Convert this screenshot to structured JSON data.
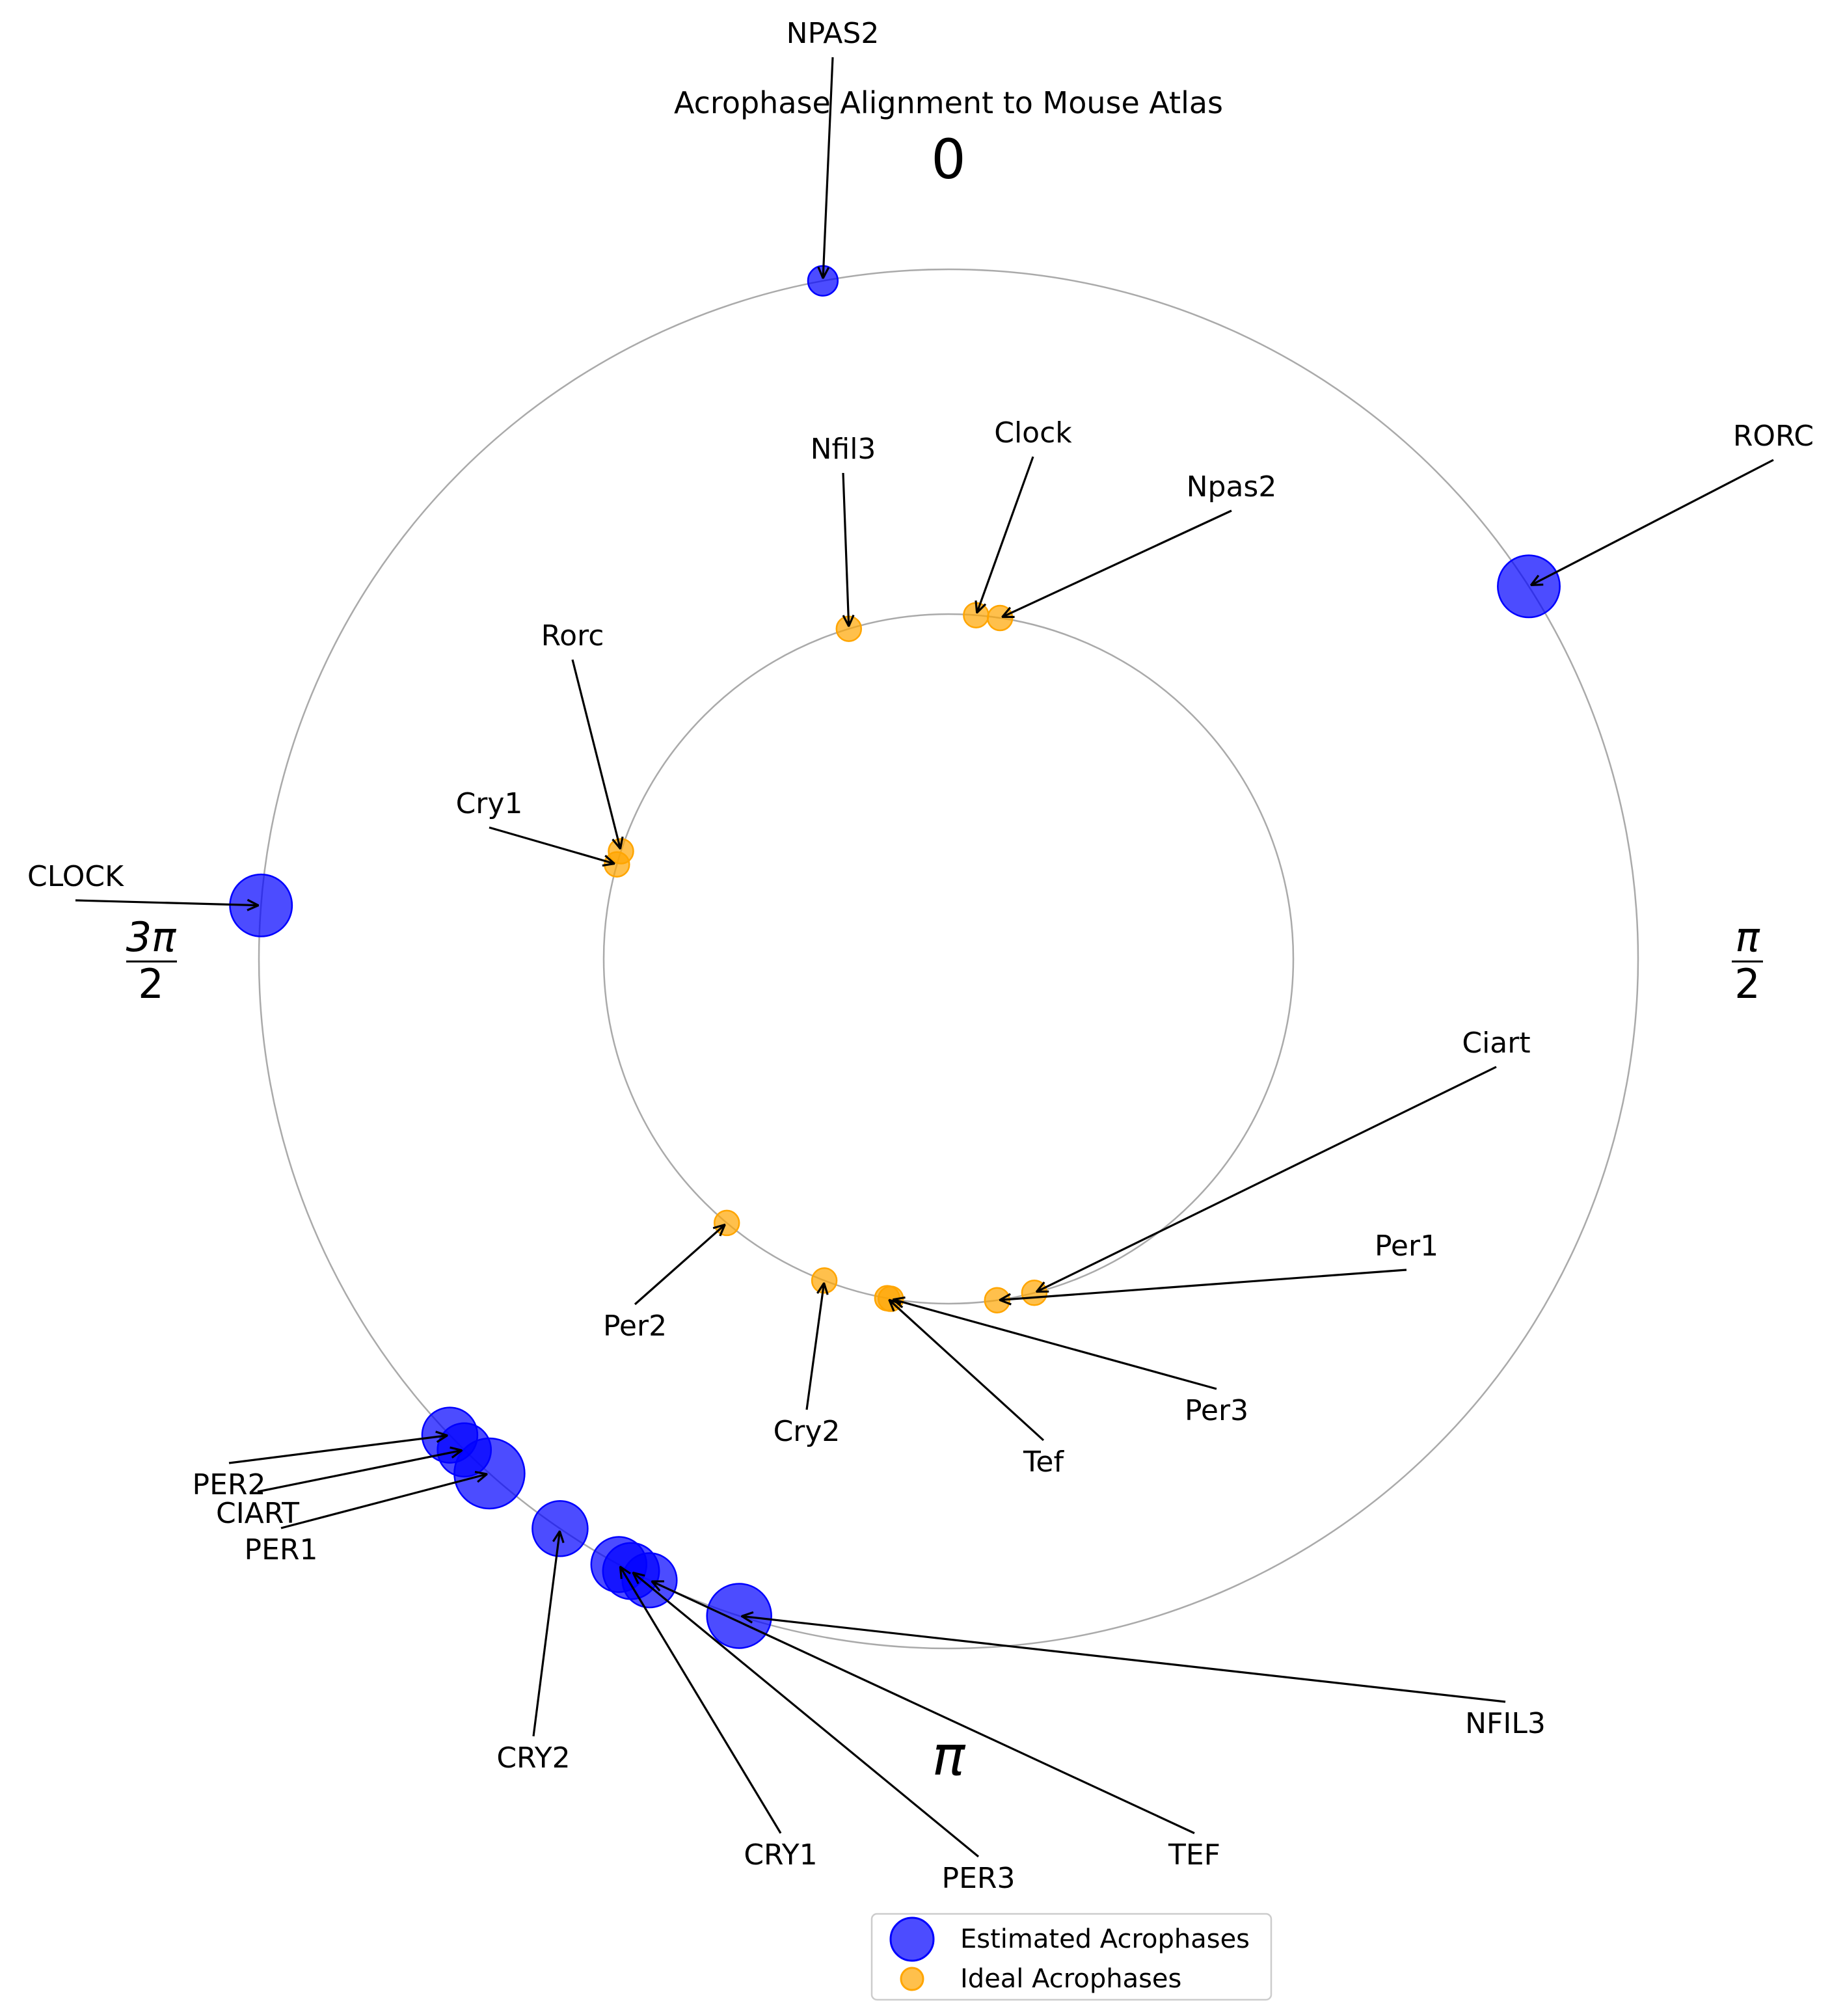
{
  "chart_data": {
    "type": "scatter",
    "projection": "polar",
    "title": "Acrophase Alignment to Mouse Atlas",
    "theta_direction": "clockwise",
    "theta_zero_location": "top",
    "theta_range": [
      0,
      6.283
    ],
    "phase_ticks": [
      {
        "label": "0",
        "theta": 0
      },
      {
        "label": "π/2",
        "numerator": "π",
        "denominator": "2",
        "theta": 1.5708
      },
      {
        "label": "π",
        "theta": 3.1416
      },
      {
        "label": "3π/2",
        "numerator": "3π",
        "denominator": "2",
        "theta": 4.7124
      }
    ],
    "radius_ticks": [
      1,
      2
    ],
    "grid": false,
    "legend_location": "bottom-center",
    "series": [
      {
        "name": "Estimated Acrophases",
        "color": "#0000ff",
        "opacity": 0.7,
        "radius": 2,
        "marker_size_encodes": "relative amplitude",
        "points": [
          {
            "label": "NPAS2",
            "theta": 6.1,
            "size": 0.18
          },
          {
            "label": "RORC",
            "theta": 1.0,
            "size": 0.78
          },
          {
            "label": "CLOCK",
            "theta": 4.79,
            "size": 0.78
          },
          {
            "label": "PER2",
            "theta": 3.95,
            "size": 0.62
          },
          {
            "label": "CIART",
            "theta": 3.92,
            "size": 0.58
          },
          {
            "label": "PER1",
            "theta": 3.87,
            "size": 1.0
          },
          {
            "label": "CRY2",
            "theta": 3.74,
            "size": 0.62
          },
          {
            "label": "CRY1",
            "theta": 3.64,
            "size": 0.62
          },
          {
            "label": "PER3",
            "theta": 3.62,
            "size": 0.64
          },
          {
            "label": "TEF",
            "theta": 3.59,
            "size": 0.6
          },
          {
            "label": "NFIL3",
            "theta": 3.45,
            "size": 0.84
          }
        ]
      },
      {
        "name": "Ideal Acrophases",
        "color": "#ffa500",
        "opacity": 0.7,
        "radius": 1,
        "points": [
          {
            "label": "Nfil3",
            "theta": 5.99
          },
          {
            "label": "Clock",
            "theta": 0.08
          },
          {
            "label": "Npas2",
            "theta": 0.15
          },
          {
            "label": "Rorc",
            "theta": 5.03
          },
          {
            "label": "Cry1",
            "theta": 4.99
          },
          {
            "label": "Per2",
            "theta": 3.84
          },
          {
            "label": "Cry2",
            "theta": 3.51
          },
          {
            "label": "Tef",
            "theta": 3.32
          },
          {
            "label": "Per3",
            "theta": 3.31
          },
          {
            "label": "Per1",
            "theta": 3.0
          },
          {
            "label": "Ciart",
            "theta": 2.89
          }
        ]
      }
    ],
    "annotations": [
      {
        "text": "NPAS2",
        "target": "NPAS2"
      },
      {
        "text": "RORC",
        "target": "RORC"
      },
      {
        "text": "CLOCK",
        "target": "CLOCK"
      },
      {
        "text": "PER2",
        "target": "PER2"
      },
      {
        "text": "CIART",
        "target": "CIART"
      },
      {
        "text": "PER1",
        "target": "PER1"
      },
      {
        "text": "CRY2",
        "target": "CRY2"
      },
      {
        "text": "CRY1",
        "target": "CRY1"
      },
      {
        "text": "PER3",
        "target": "PER3"
      },
      {
        "text": "TEF",
        "target": "TEF"
      },
      {
        "text": "NFIL3",
        "target": "NFIL3"
      },
      {
        "text": "Nfil3",
        "target": "Nfil3"
      },
      {
        "text": "Clock",
        "target": "Clock"
      },
      {
        "text": "Npas2",
        "target": "Npas2"
      },
      {
        "text": "Rorc",
        "target": "Rorc"
      },
      {
        "text": "Cry1",
        "target": "Cry1"
      },
      {
        "text": "Per2",
        "target": "Per2"
      },
      {
        "text": "Cry2",
        "target": "Cry2"
      },
      {
        "text": "Tef",
        "target": "Tef"
      },
      {
        "text": "Per3",
        "target": "Per3"
      },
      {
        "text": "Per1",
        "target": "Per1"
      },
      {
        "text": "Ciart",
        "target": "Ciart"
      }
    ]
  }
}
